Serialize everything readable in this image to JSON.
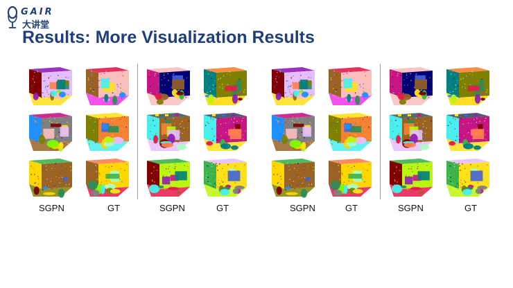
{
  "logo": {
    "text_top": "GAIR",
    "text_bottom": "大讲堂",
    "icon": "microphone-logo-icon"
  },
  "title": "Results: More Visualization Results",
  "captions": [
    "SGPN",
    "GT",
    "SGPN",
    "GT",
    "SGPN",
    "GT",
    "SGPN",
    "GT"
  ],
  "colors": {
    "title": "#1f3f7a",
    "divider": "#9a9a9a"
  }
}
